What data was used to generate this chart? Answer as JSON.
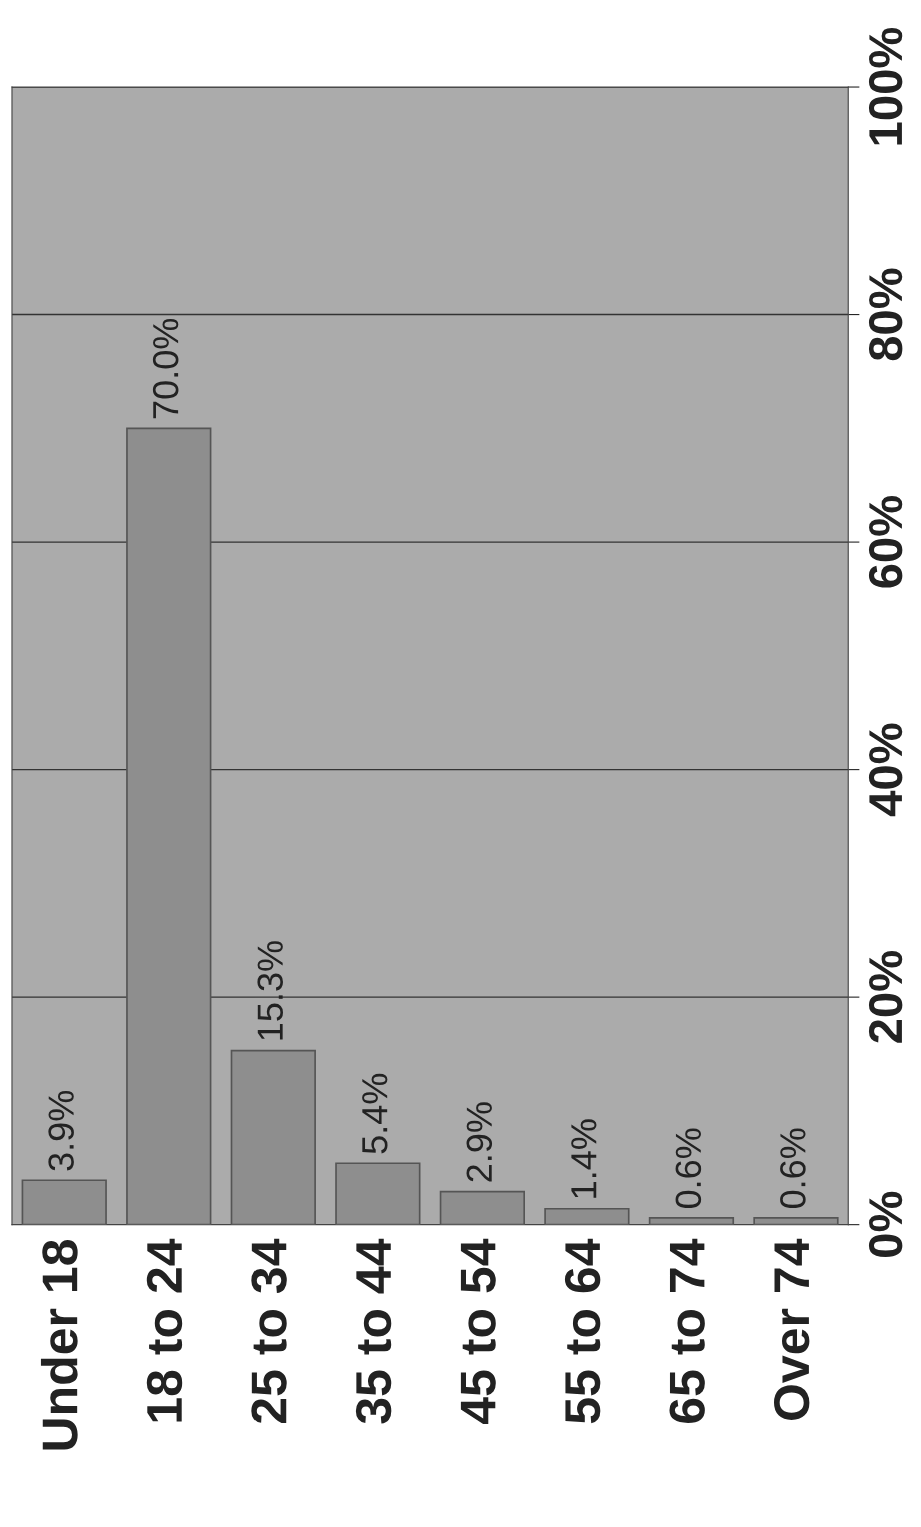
{
  "chart_data": {
    "type": "bar",
    "categories": [
      "Under 18",
      "18 to 24",
      "25 to 34",
      "35 to 44",
      "45 to 54",
      "55 to 64",
      "65 to 74",
      "Over 74"
    ],
    "values": [
      3.9,
      70.0,
      15.3,
      5.4,
      2.9,
      1.4,
      0.6,
      0.6
    ],
    "value_labels": [
      "3.9%",
      "70.0%",
      "15.3%",
      "5.4%",
      "2.9%",
      "1.4%",
      "0.6%",
      "0.6%"
    ],
    "color": "#8e8e8e",
    "ylim": [
      0,
      100
    ],
    "yticks": [
      {
        "value": 0,
        "label": "0%"
      },
      {
        "value": 20,
        "label": "20%"
      },
      {
        "value": 40,
        "label": "40%"
      },
      {
        "value": 60,
        "label": "60%"
      },
      {
        "value": 80,
        "label": "80%"
      },
      {
        "value": 100,
        "label": "100%"
      }
    ],
    "grid": "y"
  }
}
